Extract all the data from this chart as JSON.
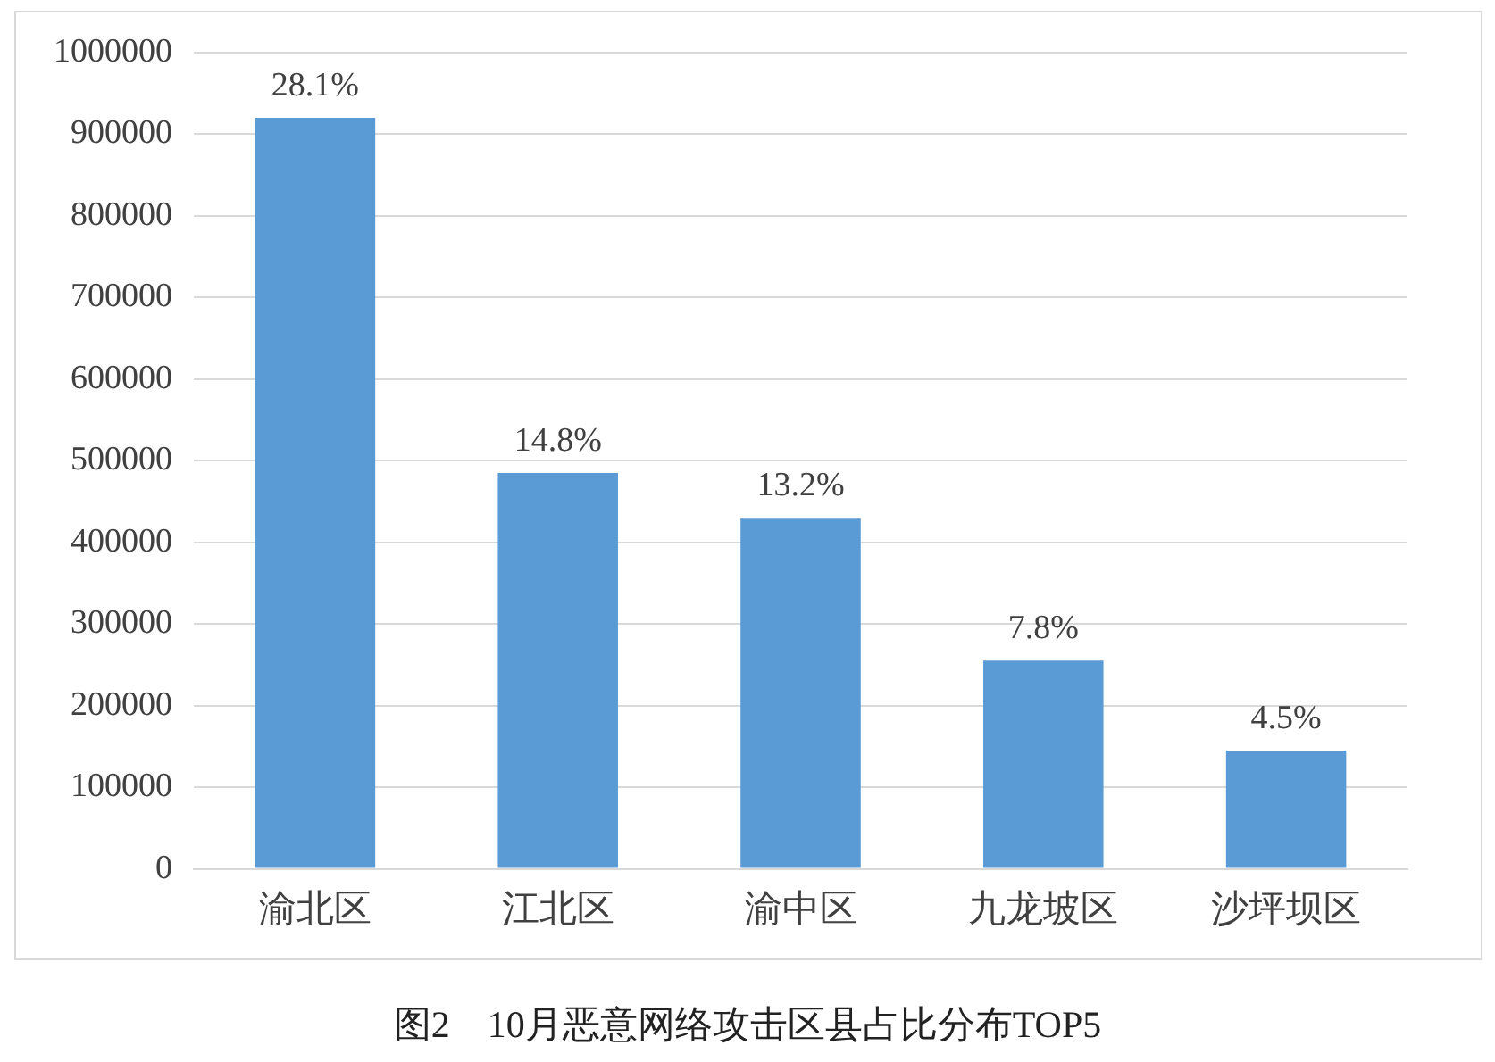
{
  "chart_data": {
    "type": "bar",
    "title": "图2　10月恶意网络攻击区县占比分布TOP5",
    "categories": [
      "渝北区",
      "江北区",
      "渝中区",
      "九龙坡区",
      "沙坪坝区"
    ],
    "values": [
      920000,
      485000,
      430000,
      255000,
      145000
    ],
    "annotations": [
      {
        "text": "28.1%",
        "x": "渝北区",
        "y": 920000
      },
      {
        "text": "14.8%",
        "x": "江北区",
        "y": 485000
      },
      {
        "text": "13.2%",
        "x": "渝中区",
        "y": 430000
      },
      {
        "text": "7.8%",
        "x": "九龙坡区",
        "y": 255000
      },
      {
        "text": "4.5%",
        "x": "沙坪坝区",
        "y": 145000
      }
    ],
    "color": "#5b9bd5",
    "ylim": [
      0,
      1000000
    ],
    "yticks": [
      0,
      100000,
      200000,
      300000,
      400000,
      500000,
      600000,
      700000,
      800000,
      900000,
      1000000
    ],
    "grid": "y",
    "legend": false
  }
}
